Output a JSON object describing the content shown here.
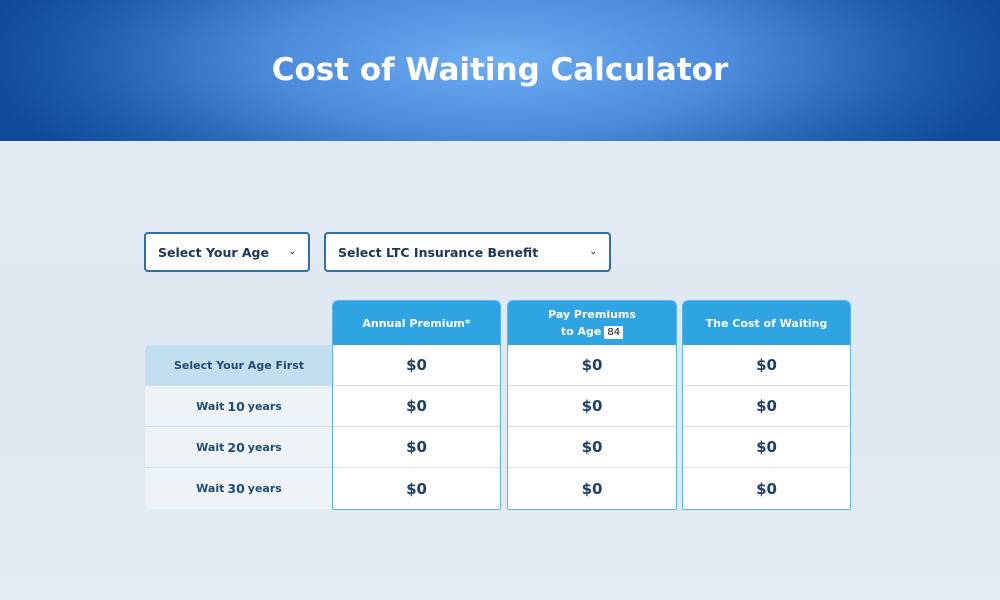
{
  "header": {
    "title": "Cost of Waiting Calculator"
  },
  "selects": {
    "age": "Select Your Age",
    "benefit": "Select LTC Insurance Benefit"
  },
  "table": {
    "columns": [
      {
        "label": "Annual Premium*"
      },
      {
        "label_line1": "Pay Premiums",
        "label_line2": "to Age",
        "age": "84"
      },
      {
        "label": "The Cost of Waiting"
      }
    ],
    "rows": [
      {
        "label": "Select Your Age First",
        "values": [
          "$0",
          "$0",
          "$0"
        ]
      },
      {
        "prefix": "Wait",
        "years": "10",
        "suffix": "years",
        "values": [
          "$0",
          "$0",
          "$0"
        ]
      },
      {
        "prefix": "Wait",
        "years": "20",
        "suffix": "years",
        "values": [
          "$0",
          "$0",
          "$0"
        ]
      },
      {
        "prefix": "Wait",
        "years": "30",
        "suffix": "years",
        "values": [
          "$0",
          "$0",
          "$0"
        ]
      }
    ]
  },
  "colors": {
    "header_blue": "#2ea5e2",
    "banner_dark": "#0f4a98",
    "banner_light": "#6eaef2"
  }
}
